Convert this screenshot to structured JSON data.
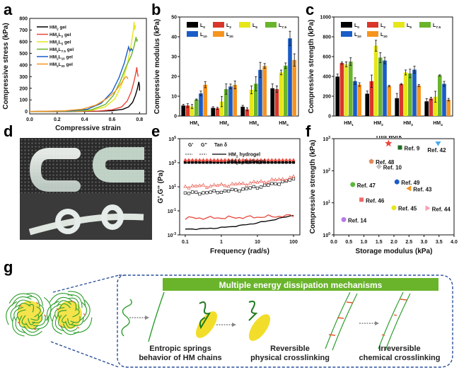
{
  "panels": {
    "a": "a",
    "b": "b",
    "c": "c",
    "d": "d",
    "e": "e",
    "f": "f",
    "g": "g"
  },
  "chart_data": [
    {
      "id": "a",
      "type": "line",
      "title": "",
      "xlabel": "Compressive strain",
      "ylabel": "Compressive stress (kPa)",
      "xlim": [
        0.0,
        0.85
      ],
      "ylim": [
        -20,
        800
      ],
      "xticks": [
        "0.0",
        "0.2",
        "0.4",
        "0.6",
        "0.8"
      ],
      "yticks": [
        "0",
        "100",
        "200",
        "300",
        "400",
        "500",
        "600",
        "700",
        "800"
      ],
      "legend_position": "top-left",
      "series": [
        {
          "name": "HM2 gel",
          "label_main": "HM",
          "label_sub1": "2",
          "label_mid": "",
          "label_sub2": "",
          "label_tail": " gel",
          "color": "#000000",
          "points": [
            [
              0,
              0
            ],
            [
              0.3,
              1
            ],
            [
              0.5,
              3
            ],
            [
              0.6,
              8
            ],
            [
              0.68,
              20
            ],
            [
              0.72,
              40
            ],
            [
              0.75,
              80
            ],
            [
              0.77,
              140
            ],
            [
              0.785,
              200
            ],
            [
              0.795,
              255
            ],
            [
              0.8,
              220
            ],
            [
              0.8,
              180
            ]
          ]
        },
        {
          "name": "HM2L2 gel",
          "label_main": "HM",
          "label_sub1": "2",
          "label_mid": "L",
          "label_sub2": "2",
          "label_tail": " gel",
          "color": "#e8463a",
          "points": [
            [
              0,
              0
            ],
            [
              0.3,
              2
            ],
            [
              0.5,
              5
            ],
            [
              0.6,
              15
            ],
            [
              0.67,
              40
            ],
            [
              0.71,
              90
            ],
            [
              0.74,
              170
            ],
            [
              0.76,
              260
            ],
            [
              0.775,
              340
            ],
            [
              0.78,
              380
            ],
            [
              0.785,
              330
            ],
            [
              0.79,
              300
            ]
          ]
        },
        {
          "name": "HM2L5 gel",
          "label_main": "HM",
          "label_sub1": "2",
          "label_mid": "L",
          "label_sub2": "5",
          "label_tail": " gel",
          "color": "#e6e61a",
          "points": [
            [
              0,
              0
            ],
            [
              0.3,
              3
            ],
            [
              0.45,
              10
            ],
            [
              0.55,
              40
            ],
            [
              0.62,
              110
            ],
            [
              0.67,
              230
            ],
            [
              0.71,
              400
            ],
            [
              0.74,
              580
            ],
            [
              0.755,
              700
            ],
            [
              0.76,
              770
            ],
            [
              0.765,
              700
            ],
            [
              0.77,
              740
            ]
          ]
        },
        {
          "name": "HM2L7.5 gel",
          "label_main": "HM",
          "label_sub1": "2",
          "label_mid": "L",
          "label_sub2": "7.5",
          "label_tail": " gel",
          "color": "#6ab42c",
          "points": [
            [
              0,
              0
            ],
            [
              0.3,
              4
            ],
            [
              0.45,
              15
            ],
            [
              0.55,
              60
            ],
            [
              0.61,
              140
            ],
            [
              0.66,
              260
            ],
            [
              0.7,
              380
            ],
            [
              0.74,
              480
            ],
            [
              0.76,
              560
            ],
            [
              0.775,
              640
            ],
            [
              0.78,
              600
            ],
            [
              0.785,
              620
            ]
          ]
        },
        {
          "name": "HM2L10 gel",
          "label_main": "HM",
          "label_sub1": "2",
          "label_mid": "L",
          "label_sub2": "10",
          "label_tail": " gel",
          "color": "#1a5cc8",
          "points": [
            [
              0,
              0
            ],
            [
              0.3,
              6
            ],
            [
              0.42,
              20
            ],
            [
              0.52,
              70
            ],
            [
              0.6,
              170
            ],
            [
              0.65,
              290
            ],
            [
              0.69,
              420
            ],
            [
              0.71,
              510
            ],
            [
              0.72,
              555
            ],
            [
              0.73,
              520
            ],
            [
              0.74,
              540
            ],
            [
              0.75,
              520
            ]
          ]
        },
        {
          "name": "HM2L20 gel",
          "label_main": "HM",
          "label_sub1": "2",
          "label_mid": "L",
          "label_sub2": "20",
          "label_tail": " gel",
          "color": "#f7941d",
          "points": [
            [
              0,
              0
            ],
            [
              0.25,
              6
            ],
            [
              0.38,
              20
            ],
            [
              0.48,
              55
            ],
            [
              0.56,
              110
            ],
            [
              0.62,
              170
            ],
            [
              0.66,
              230
            ],
            [
              0.69,
              285
            ],
            [
              0.7,
              300
            ],
            [
              0.71,
              295
            ],
            [
              0.715,
              280
            ]
          ]
        }
      ]
    },
    {
      "id": "b",
      "type": "bar",
      "title": "",
      "xlabel": "",
      "ylabel": "Compressive modulus (kPa)",
      "ylim": [
        0,
        50
      ],
      "yticks": [
        "0",
        "10",
        "20",
        "30",
        "40",
        "50"
      ],
      "categories": [
        "HM1",
        "HM2",
        "HM3",
        "HM4"
      ],
      "category_main": [
        "HM",
        "HM",
        "HM",
        "HM"
      ],
      "category_sub": [
        "1",
        "2",
        "3",
        "4"
      ],
      "legend_position": "top-left",
      "series": [
        {
          "name": "L0",
          "sub": "0",
          "color": "#000000",
          "values": [
            5.3,
            4.1,
            4.7,
            14.0
          ],
          "errors": [
            0.6,
            0.6,
            0.7,
            2.2
          ]
        },
        {
          "name": "L2",
          "sub": "2",
          "color": "#d8362a",
          "values": [
            5.3,
            3.9,
            3.4,
            13.6
          ],
          "errors": [
            0.9,
            0.5,
            0.8,
            1.6
          ]
        },
        {
          "name": "L5",
          "sub": "5",
          "color": "#e6e61a",
          "values": [
            4.8,
            7.3,
            13.2,
            22.0
          ],
          "errors": [
            1.0,
            2.6,
            2.0,
            1.2
          ]
        },
        {
          "name": "L7.5",
          "sub": "7.5",
          "color": "#6ab42c",
          "values": [
            8.3,
            13.6,
            16.3,
            25.4
          ],
          "errors": [
            0.3,
            2.6,
            3.6,
            1.4
          ]
        },
        {
          "name": "L10",
          "sub": "10",
          "color": "#1a5cc8",
          "values": [
            11.4,
            14.9,
            23.3,
            39.2
          ],
          "errors": [
            1.2,
            1.2,
            3.8,
            3.6
          ]
        },
        {
          "name": "L20",
          "sub": "20",
          "color": "#f7941d",
          "values": [
            15.8,
            15.7,
            25.3,
            28.3
          ],
          "errors": [
            1.5,
            2.0,
            1.2,
            3.1
          ]
        }
      ]
    },
    {
      "id": "c",
      "type": "bar",
      "title": "",
      "xlabel": "",
      "ylabel": "Compressive strength (kPa)",
      "ylim": [
        0,
        1000
      ],
      "yticks": [
        "0",
        "200",
        "400",
        "600",
        "800",
        "1000"
      ],
      "categories": [
        "HM1",
        "HM2",
        "HM3",
        "HM4"
      ],
      "category_main": [
        "HM",
        "HM",
        "HM",
        "HM"
      ],
      "category_sub": [
        "1",
        "2",
        "3",
        "4"
      ],
      "legend_position": "top-left",
      "series": [
        {
          "name": "L0",
          "sub": "0",
          "color": "#000000",
          "values": [
            398,
            225,
            180,
            148
          ],
          "errors": [
            25,
            28,
            48,
            28
          ]
        },
        {
          "name": "L2",
          "sub": "2",
          "color": "#d8362a",
          "values": [
            535,
            352,
            322,
            177
          ],
          "errors": [
            10,
            62,
            6,
            13
          ]
        },
        {
          "name": "L5",
          "sub": "5",
          "color": "#e6e61a",
          "values": [
            522,
            710,
            440,
            195
          ],
          "errors": [
            25,
            55,
            25,
            55
          ]
        },
        {
          "name": "L7.5",
          "sub": "7.5",
          "color": "#6ab42c",
          "values": [
            550,
            590,
            430,
            410
          ],
          "errors": [
            38,
            50,
            43,
            6
          ]
        },
        {
          "name": "L10",
          "sub": "10",
          "color": "#1a5cc8",
          "values": [
            353,
            560,
            468,
            325
          ],
          "errors": [
            33,
            33,
            35,
            25
          ]
        },
        {
          "name": "L20",
          "sub": "20",
          "color": "#f7941d",
          "values": [
            318,
            303,
            308,
            165
          ],
          "errors": [
            18,
            8,
            10,
            13
          ]
        }
      ]
    },
    {
      "id": "e",
      "type": "line",
      "title": "",
      "xlabel": "Frequency (rad/s)",
      "ylabel": "G',G'' (Pa)",
      "xscale": "log",
      "yscale": "log",
      "xlim": [
        0.07,
        150
      ],
      "ylim": [
        0.001,
        100000
      ],
      "xticks": [
        "0.1",
        "1",
        "10",
        "100"
      ],
      "yticks": [
        {
          "base": "10",
          "exp": "-3"
        },
        {
          "base": "10",
          "exp": "-1"
        },
        {
          "base": "10",
          "exp": "1"
        },
        {
          "base": "10",
          "exp": "3"
        },
        {
          "base": "10",
          "exp": "5"
        }
      ],
      "legend_position": "top-left",
      "legend_headers": [
        "G'",
        "G''",
        "Tan δ"
      ],
      "legend_rows": [
        {
          "label_main": "HM",
          "label_sub1": "2",
          "label_mid": "",
          "label_sub2": "",
          "label_tail": " hydrogel",
          "color": "#000000"
        },
        {
          "label_main": "HM",
          "label_sub1": "2",
          "label_mid": "L",
          "label_sub2": "5",
          "label_tail": " hydrogel",
          "color": "#e8463a"
        }
      ],
      "series": [
        {
          "name": "HM2 G'",
          "color": "#000000",
          "marker": "square-filled",
          "level": 1100
        },
        {
          "name": "HM2L5 G'",
          "color": "#e8463a",
          "marker": "triangle-filled",
          "level": 1700
        },
        {
          "name": "HM2 G''",
          "color": "#000000",
          "marker": "square-open",
          "start": 3,
          "end": 40,
          "wiggle": 0.12
        },
        {
          "name": "HM2L5 G''",
          "color": "#e8463a",
          "marker": "triangle-open",
          "start": 11,
          "end": 60,
          "wiggle": 0.15
        },
        {
          "name": "HM2 Tan δ",
          "color": "#000000",
          "marker": "none",
          "start": 0.003,
          "end": 0.045,
          "wiggle": 0.05
        },
        {
          "name": "HM2L5 Tan δ",
          "color": "#e8463a",
          "marker": "none",
          "start": 0.025,
          "end": 0.04,
          "wiggle": 0.15
        }
      ]
    },
    {
      "id": "f",
      "type": "scatter",
      "title": "",
      "xlabel": "Storage modulus (kPa)",
      "ylabel": "Compressive strength (kPa)",
      "yscale": "log",
      "xlim": [
        0.0,
        4.0
      ],
      "ylim": [
        1,
        1000
      ],
      "xticks": [
        "0.0",
        "0.5",
        "1.0",
        "1.5",
        "2.0",
        "2.5",
        "3.0",
        "3.5",
        "4.0"
      ],
      "yticks": [
        {
          "base": "10",
          "exp": "0"
        },
        {
          "base": "10",
          "exp": "1"
        },
        {
          "base": "10",
          "exp": "2"
        },
        {
          "base": "10",
          "exp": "3"
        }
      ],
      "points": [
        {
          "label": "This work",
          "x": 1.82,
          "y": 710,
          "color": "#e8463a",
          "marker": "star",
          "label_pos": "above"
        },
        {
          "label": "Ref. 9",
          "x": 2.2,
          "y": 530,
          "color": "#1f6e1f",
          "marker": "square",
          "label_pos": "right"
        },
        {
          "label": "Ref. 42",
          "x": 3.47,
          "y": 700,
          "color": "#4aa8e8",
          "marker": "triangle-down",
          "label_pos": "below"
        },
        {
          "label": "Ref. 48",
          "x": 1.25,
          "y": 195,
          "color": "#e08a5a",
          "marker": "pentagon",
          "label_pos": "right"
        },
        {
          "label": "Ref. 10",
          "x": 1.5,
          "y": 135,
          "color": "#c0c0c0",
          "marker": "diamond",
          "label_pos": "right"
        },
        {
          "label": "Ref. 49",
          "x": 2.1,
          "y": 45,
          "color": "#1a5cc8",
          "marker": "hexagon",
          "label_pos": "right"
        },
        {
          "label": "Ref. 47",
          "x": 0.63,
          "y": 37,
          "color": "#5cb83a",
          "marker": "circle",
          "label_pos": "right"
        },
        {
          "label": "Ref. 43",
          "x": 2.5,
          "y": 28,
          "color": "#f7941d",
          "marker": "triangle-left",
          "label_pos": "right"
        },
        {
          "label": "Ref. 46",
          "x": 0.92,
          "y": 12.5,
          "color": "#ef6a6a",
          "marker": "square",
          "label_pos": "right"
        },
        {
          "label": "Ref. 45",
          "x": 2.0,
          "y": 7.0,
          "color": "#e6e61a",
          "marker": "circle",
          "label_pos": "right"
        },
        {
          "label": "Ref. 44",
          "x": 3.12,
          "y": 6.8,
          "color": "#f5a0b4",
          "marker": "triangle-right",
          "label_pos": "right"
        },
        {
          "label": "Ref. 14",
          "x": 0.33,
          "y": 3.0,
          "color": "#b77ae8",
          "marker": "circle",
          "label_pos": "right"
        }
      ]
    }
  ],
  "schematic": {
    "title": "Multiple energy dissipation mechanisms",
    "mechanisms": [
      {
        "line1": "Entropic springs",
        "line2": "behavior of HM chains"
      },
      {
        "line1": "Reversible",
        "line2": "physical crosslinking"
      },
      {
        "line1": "Irreversible",
        "line2": "chemical crosslinking"
      }
    ],
    "colors": {
      "banner": "#6ab42c",
      "chain": "#2e9e2e",
      "particle": "#f2de2a",
      "crosslink": "#e8562a",
      "frame": "#2a4f9a",
      "arrow": "#888888"
    }
  },
  "photo": {
    "description": "Hydrogel specimens bent into U-shapes and tied into knots"
  }
}
